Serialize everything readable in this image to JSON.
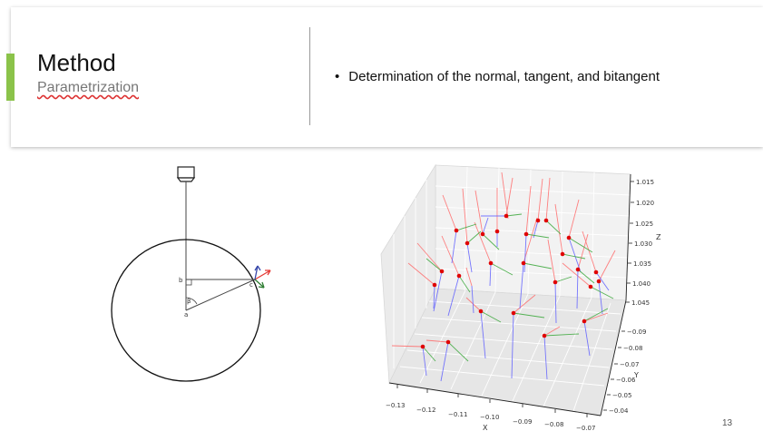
{
  "slide": {
    "title": "Method",
    "subtitle": "Parametrization",
    "bullet": "Determination of the normal, tangent, and bitangent",
    "page_number": "13",
    "accent_color": "#8bc34a"
  },
  "diagram": {
    "labels": {
      "b": "b",
      "c": "c",
      "a": "a",
      "beta": "β"
    }
  },
  "plot3d": {
    "x_ticks": [
      "−0.13",
      "−0.12",
      "−0.11",
      "−0.10",
      "−0.09",
      "−0.08",
      "−0.07"
    ],
    "y_ticks": [
      "−0.09",
      "−0.08",
      "−0.07",
      "−0.06",
      "−0.05",
      "−0.04"
    ],
    "z_ticks": [
      "1.015",
      "1.020",
      "1.025",
      "1.030",
      "1.035",
      "1.040",
      "1.045"
    ],
    "x_label": "X",
    "y_label": "Y",
    "z_label": "Z",
    "colors": {
      "normal": "#ff6666",
      "tangent": "#5a5aff",
      "bitangent": "#4caf50",
      "point": "#e00000"
    }
  }
}
